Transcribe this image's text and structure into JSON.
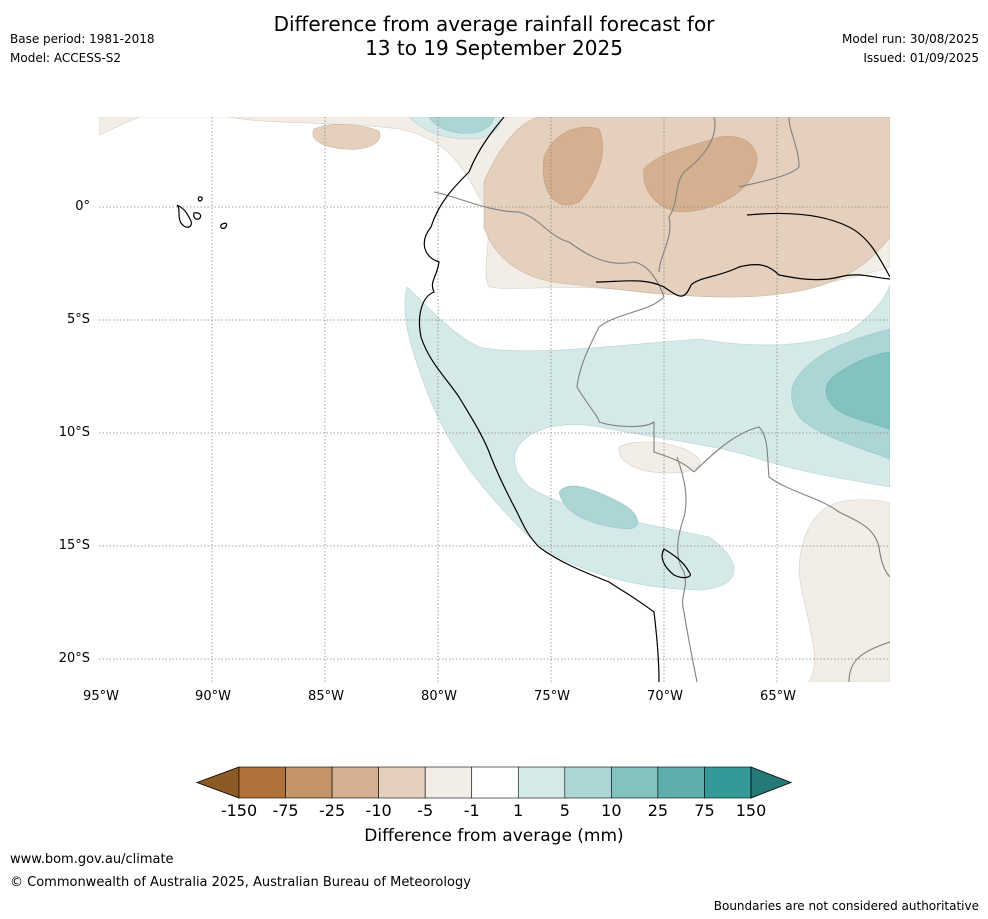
{
  "header": {
    "title_line1": "Difference from average rainfall forecast for",
    "title_line2": "13 to 19 September 2025",
    "base_period": "Base period: 1981-2018",
    "model": "Model: ACCESS-S2",
    "model_run": "Model run: 30/08/2025",
    "issued": "Issued: 01/09/2025"
  },
  "map": {
    "lat_labels": [
      "0°",
      "5°S",
      "10°S",
      "15°S",
      "20°S"
    ],
    "lon_labels": [
      "95°W",
      "90°W",
      "85°W",
      "80°W",
      "75°W",
      "70°W",
      "65°W"
    ],
    "grid": true,
    "coastline_color": "#000000",
    "border_color": "#808080"
  },
  "colorbar": {
    "title": "Difference from average (mm)",
    "ticks": [
      "-150",
      "-75",
      "-25",
      "-10",
      "-5",
      "-1",
      "1",
      "5",
      "10",
      "25",
      "75",
      "150"
    ],
    "colors": [
      "#8c5a24",
      "#b07238",
      "#c4946a",
      "#d4b090",
      "#e4d0bc",
      "#f2ede6",
      "#ffffff",
      "#d5e9e8",
      "#acd6d5",
      "#82c2bf",
      "#5eaead",
      "#359a97",
      "#257a77"
    ]
  },
  "footer": {
    "website": "www.bom.gov.au/climate",
    "copyright": "© Commonwealth of Australia 2025, Australian Bureau of Meteorology",
    "disclaimer": "Boundaries are not considered authoritative"
  }
}
